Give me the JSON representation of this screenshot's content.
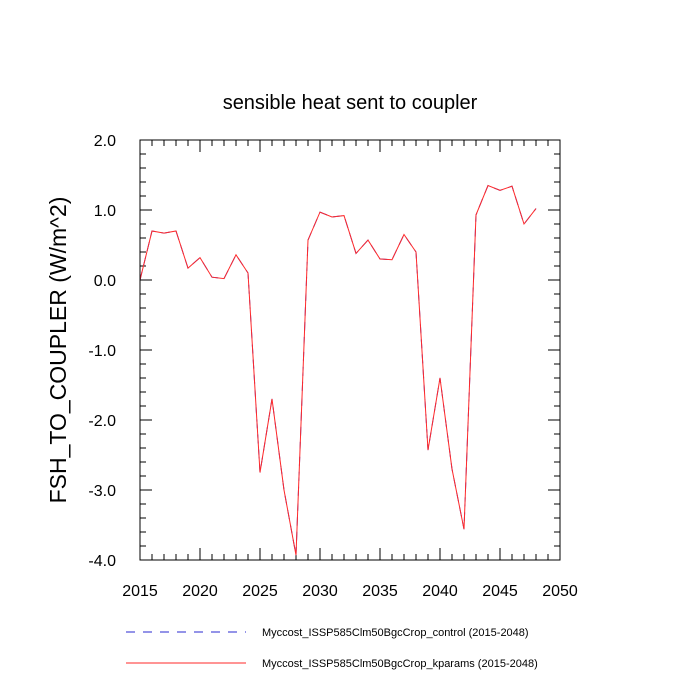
{
  "chart_data": {
    "type": "line",
    "title": "sensible heat sent to coupler",
    "xlabel": "",
    "ylabel": "FSH_TO_COUPLER  (W/m^2)",
    "xlim": [
      2015,
      2050
    ],
    "ylim": [
      -4.0,
      2.0
    ],
    "x_ticks": [
      2015,
      2020,
      2025,
      2030,
      2035,
      2040,
      2045,
      2050
    ],
    "y_ticks": [
      2.0,
      1.0,
      0.0,
      -1.0,
      -2.0,
      -3.0,
      -4.0
    ],
    "y_tick_labels": [
      "2.0",
      "1.0",
      "0.0",
      "-1.0",
      "-2.0",
      "-3.0",
      "-4.0"
    ],
    "x": [
      2015,
      2016,
      2017,
      2018,
      2019,
      2020,
      2021,
      2022,
      2023,
      2024,
      2025,
      2026,
      2027,
      2028,
      2029,
      2030,
      2031,
      2032,
      2033,
      2034,
      2035,
      2036,
      2037,
      2038,
      2039,
      2040,
      2041,
      2042,
      2043,
      2044,
      2045,
      2046,
      2047,
      2048
    ],
    "series": [
      {
        "name": "Myccost_ISSP585Clm50BgcCrop_control (2015-2048)",
        "color": "#2a2ad0",
        "style": "dashed",
        "values": [
          0.0,
          0.7,
          0.67,
          0.7,
          0.17,
          0.32,
          0.04,
          0.02,
          0.36,
          0.1,
          -2.75,
          -1.7,
          -3.0,
          -3.93,
          0.57,
          0.97,
          0.9,
          0.92,
          0.38,
          0.57,
          0.3,
          0.29,
          0.65,
          0.4,
          -2.43,
          -1.4,
          -2.7,
          -3.56,
          0.93,
          1.35,
          1.28,
          1.34,
          0.8,
          1.02
        ]
      },
      {
        "name": "Myccost_ISSP585Clm50BgcCrop_kparams (2015-2048)",
        "color": "#ff2a2a",
        "style": "solid",
        "values": [
          0.0,
          0.7,
          0.67,
          0.7,
          0.17,
          0.32,
          0.04,
          0.02,
          0.36,
          0.1,
          -2.75,
          -1.7,
          -3.0,
          -3.93,
          0.57,
          0.97,
          0.9,
          0.92,
          0.38,
          0.57,
          0.3,
          0.29,
          0.65,
          0.4,
          -2.43,
          -1.4,
          -2.7,
          -3.56,
          0.93,
          1.35,
          1.28,
          1.34,
          0.8,
          1.02
        ]
      }
    ],
    "legend": "bottom"
  }
}
